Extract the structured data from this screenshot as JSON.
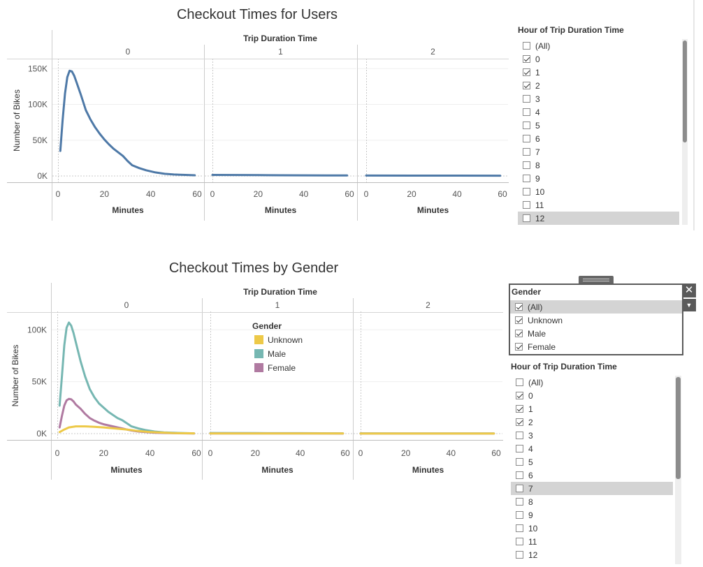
{
  "chart_data": [
    {
      "type": "line",
      "title": "Checkout Times for Users",
      "column_header": "Trip Duration Time",
      "panels": [
        "0",
        "1",
        "2"
      ],
      "xlabel": "Minutes",
      "ylabel": "Number of Bikes",
      "xlim": [
        0,
        60
      ],
      "xticks": [
        "0",
        "20",
        "40",
        "60"
      ],
      "ylim": [
        0,
        160000
      ],
      "yticks": [
        {
          "value": 0,
          "label": "0K"
        },
        {
          "value": 50000,
          "label": "50K"
        },
        {
          "value": 100000,
          "label": "100K"
        },
        {
          "value": 150000,
          "label": "150K"
        }
      ],
      "grid": true,
      "series": [
        {
          "color": "#4e79a7",
          "panels": [
            {
              "points": [
                [
                  1,
                  35000
                ],
                [
                  2,
                  78000
                ],
                [
                  3,
                  115000
                ],
                [
                  4,
                  138000
                ],
                [
                  5,
                  147000
                ],
                [
                  6,
                  146000
                ],
                [
                  7,
                  140000
                ],
                [
                  8,
                  131000
                ],
                [
                  10,
                  112000
                ],
                [
                  12,
                  92000
                ],
                [
                  14,
                  79000
                ],
                [
                  16,
                  68000
                ],
                [
                  18,
                  59000
                ],
                [
                  20,
                  51000
                ],
                [
                  22,
                  44000
                ],
                [
                  24,
                  38000
                ],
                [
                  26,
                  33000
                ],
                [
                  28,
                  28000
                ],
                [
                  30,
                  21000
                ],
                [
                  32,
                  15000
                ],
                [
                  35,
                  11000
                ],
                [
                  38,
                  8000
                ],
                [
                  42,
                  5000
                ],
                [
                  46,
                  3000
                ],
                [
                  50,
                  2000
                ],
                [
                  55,
                  1500
                ],
                [
                  59,
                  1000
                ]
              ]
            },
            {
              "points": [
                [
                  0,
                  1500
                ],
                [
                  10,
                  1400
                ],
                [
                  20,
                  1200
                ],
                [
                  30,
                  1000
                ],
                [
                  40,
                  900
                ],
                [
                  50,
                  800
                ],
                [
                  59,
                  700
                ]
              ]
            },
            {
              "points": [
                [
                  0,
                  600
                ],
                [
                  20,
                  500
                ],
                [
                  40,
                  500
                ],
                [
                  59,
                  400
                ]
              ]
            }
          ]
        }
      ]
    },
    {
      "type": "line",
      "title": "Checkout Times by Gender",
      "column_header": "Trip Duration Time",
      "panels": [
        "0",
        "1",
        "2"
      ],
      "xlabel": "Minutes",
      "ylabel": "Number of Bikes",
      "xlim": [
        0,
        60
      ],
      "xticks": [
        "0",
        "20",
        "40",
        "60"
      ],
      "ylim": [
        0,
        115000
      ],
      "yticks": [
        {
          "value": 0,
          "label": "0K"
        },
        {
          "value": 50000,
          "label": "50K"
        },
        {
          "value": 100000,
          "label": "100K"
        }
      ],
      "grid": true,
      "legend": {
        "title": "Gender",
        "placement": "inside-middle-panel"
      },
      "series": [
        {
          "name": "Unknown",
          "color": "#edc948",
          "panels": [
            {
              "points": [
                [
                  1,
                  1500
                ],
                [
                  3,
                  4000
                ],
                [
                  5,
                  6000
                ],
                [
                  8,
                  7000
                ],
                [
                  12,
                  7000
                ],
                [
                  16,
                  6500
                ],
                [
                  20,
                  6000
                ],
                [
                  25,
                  5000
                ],
                [
                  30,
                  4000
                ],
                [
                  35,
                  2500
                ],
                [
                  40,
                  1500
                ],
                [
                  45,
                  1000
                ],
                [
                  50,
                  500
                ],
                [
                  59,
                  300
                ]
              ]
            },
            {
              "points": [
                [
                  0,
                  200
                ],
                [
                  20,
                  200
                ],
                [
                  40,
                  200
                ],
                [
                  59,
                  200
                ]
              ]
            },
            {
              "points": [
                [
                  0,
                  100
                ],
                [
                  20,
                  100
                ],
                [
                  40,
                  100
                ],
                [
                  59,
                  100
                ]
              ]
            }
          ]
        },
        {
          "name": "Male",
          "color": "#76b7b2",
          "panels": [
            {
              "points": [
                [
                  1,
                  27000
                ],
                [
                  2,
                  55000
                ],
                [
                  3,
                  85000
                ],
                [
                  4,
                  102000
                ],
                [
                  5,
                  107000
                ],
                [
                  6,
                  104000
                ],
                [
                  7,
                  97000
                ],
                [
                  8,
                  88000
                ],
                [
                  10,
                  70000
                ],
                [
                  12,
                  55000
                ],
                [
                  14,
                  43000
                ],
                [
                  16,
                  35000
                ],
                [
                  18,
                  29000
                ],
                [
                  20,
                  25000
                ],
                [
                  22,
                  21000
                ],
                [
                  24,
                  18000
                ],
                [
                  26,
                  15000
                ],
                [
                  28,
                  13000
                ],
                [
                  30,
                  10000
                ],
                [
                  32,
                  7000
                ],
                [
                  35,
                  5000
                ],
                [
                  38,
                  3500
                ],
                [
                  42,
                  2000
                ],
                [
                  46,
                  1200
                ],
                [
                  50,
                  800
                ],
                [
                  55,
                  500
                ],
                [
                  59,
                  300
                ]
              ]
            },
            {
              "points": [
                [
                  0,
                  600
                ],
                [
                  20,
                  500
                ],
                [
                  40,
                  400
                ],
                [
                  59,
                  300
                ]
              ]
            },
            {
              "points": [
                [
                  0,
                  300
                ],
                [
                  20,
                  200
                ],
                [
                  40,
                  200
                ],
                [
                  59,
                  200
                ]
              ]
            }
          ]
        },
        {
          "name": "Female",
          "color": "#b07aa1",
          "panels": [
            {
              "points": [
                [
                  1,
                  6000
                ],
                [
                  2,
                  17000
                ],
                [
                  3,
                  27000
                ],
                [
                  4,
                  32000
                ],
                [
                  5,
                  33500
                ],
                [
                  6,
                  33000
                ],
                [
                  7,
                  31000
                ],
                [
                  8,
                  28000
                ],
                [
                  10,
                  24000
                ],
                [
                  12,
                  19000
                ],
                [
                  14,
                  15000
                ],
                [
                  16,
                  12500
                ],
                [
                  18,
                  10500
                ],
                [
                  20,
                  9000
                ],
                [
                  22,
                  8000
                ],
                [
                  24,
                  7000
                ],
                [
                  26,
                  6000
                ],
                [
                  28,
                  5000
                ],
                [
                  30,
                  4000
                ],
                [
                  32,
                  3000
                ],
                [
                  35,
                  2000
                ],
                [
                  38,
                  1500
                ],
                [
                  42,
                  900
                ],
                [
                  46,
                  600
                ],
                [
                  50,
                  400
                ],
                [
                  55,
                  250
                ],
                [
                  59,
                  150
                ]
              ]
            },
            {
              "points": [
                [
                  0,
                  200
                ],
                [
                  20,
                  200
                ],
                [
                  40,
                  150
                ],
                [
                  59,
                  100
                ]
              ]
            },
            {
              "points": [
                [
                  0,
                  100
                ],
                [
                  20,
                  100
                ],
                [
                  40,
                  100
                ],
                [
                  59,
                  100
                ]
              ]
            }
          ]
        }
      ]
    }
  ],
  "filters": {
    "hour_top": {
      "title": "Hour of Trip Duration Time",
      "items": [
        {
          "label": "(All)",
          "checked": false
        },
        {
          "label": "0",
          "checked": true
        },
        {
          "label": "1",
          "checked": true
        },
        {
          "label": "2",
          "checked": true
        },
        {
          "label": "3",
          "checked": false
        },
        {
          "label": "4",
          "checked": false
        },
        {
          "label": "5",
          "checked": false
        },
        {
          "label": "6",
          "checked": false
        },
        {
          "label": "7",
          "checked": false
        },
        {
          "label": "8",
          "checked": false
        },
        {
          "label": "9",
          "checked": false
        },
        {
          "label": "10",
          "checked": false
        },
        {
          "label": "11",
          "checked": false
        },
        {
          "label": "12",
          "checked": false,
          "highlighted": true
        }
      ]
    },
    "gender": {
      "title": "Gender",
      "items": [
        {
          "label": "(All)",
          "checked": true,
          "highlighted": true
        },
        {
          "label": "Unknown",
          "checked": true
        },
        {
          "label": "Male",
          "checked": true
        },
        {
          "label": "Female",
          "checked": true
        }
      ]
    },
    "hour_bottom": {
      "title": "Hour of Trip Duration Time",
      "items": [
        {
          "label": "(All)",
          "checked": false
        },
        {
          "label": "0",
          "checked": true
        },
        {
          "label": "1",
          "checked": true
        },
        {
          "label": "2",
          "checked": true
        },
        {
          "label": "3",
          "checked": false
        },
        {
          "label": "4",
          "checked": false
        },
        {
          "label": "5",
          "checked": false
        },
        {
          "label": "6",
          "checked": false
        },
        {
          "label": "7",
          "checked": false,
          "highlighted": true
        },
        {
          "label": "8",
          "checked": false
        },
        {
          "label": "9",
          "checked": false
        },
        {
          "label": "10",
          "checked": false
        },
        {
          "label": "11",
          "checked": false
        },
        {
          "label": "12",
          "checked": false
        }
      ]
    }
  },
  "icons": {
    "close": "close-icon",
    "dropdown": "dropdown-arrow-icon",
    "drag_handle": "drag-handle-icon"
  }
}
